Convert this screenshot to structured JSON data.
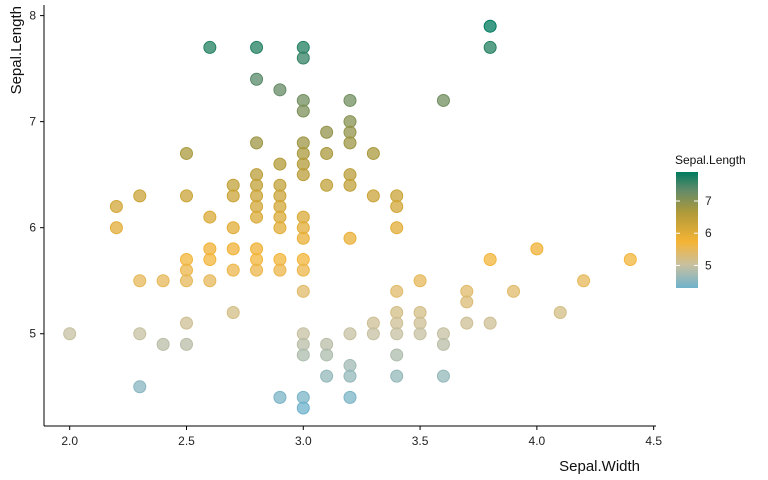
{
  "chart_data": {
    "type": "scatter",
    "xlabel": "Sepal.Width",
    "ylabel": "Sepal.Length",
    "xlim": [
      1.89,
      4.51
    ],
    "ylim": [
      4.13,
      8.1
    ],
    "x_ticks": [
      2.0,
      2.5,
      3.0,
      3.5,
      4.0,
      4.5
    ],
    "x_tick_labels": [
      "2.0",
      "2.5",
      "3.0",
      "3.5",
      "4.0",
      "4.5"
    ],
    "y_ticks": [
      5,
      6,
      7,
      8
    ],
    "y_tick_labels": [
      "5",
      "6",
      "7",
      "8"
    ],
    "grid": false,
    "color_by": "Sepal.Length",
    "legend": {
      "title": "Sepal.Length",
      "placement": "right",
      "range": [
        4.3,
        7.9
      ],
      "ticks": [
        5,
        6,
        7
      ],
      "tick_labels": [
        "5",
        "6",
        "7"
      ],
      "colors": [
        "#6fb2cc",
        "#c8c0a0",
        "#f5b435",
        "#b09a3a",
        "#5f8a6a",
        "#007a5e"
      ]
    },
    "points": [
      {
        "x": 2.0,
        "y": 5.0
      },
      {
        "x": 2.2,
        "y": 6.2
      },
      {
        "x": 2.2,
        "y": 6.0
      },
      {
        "x": 2.3,
        "y": 6.3
      },
      {
        "x": 2.3,
        "y": 5.5
      },
      {
        "x": 2.3,
        "y": 5.0
      },
      {
        "x": 2.3,
        "y": 4.5
      },
      {
        "x": 2.4,
        "y": 5.5
      },
      {
        "x": 2.4,
        "y": 4.9
      },
      {
        "x": 2.5,
        "y": 6.7
      },
      {
        "x": 2.5,
        "y": 6.3
      },
      {
        "x": 2.5,
        "y": 5.7
      },
      {
        "x": 2.5,
        "y": 5.6
      },
      {
        "x": 2.5,
        "y": 5.5
      },
      {
        "x": 2.5,
        "y": 5.1
      },
      {
        "x": 2.5,
        "y": 4.9
      },
      {
        "x": 2.6,
        "y": 7.7
      },
      {
        "x": 2.6,
        "y": 6.1
      },
      {
        "x": 2.6,
        "y": 5.8
      },
      {
        "x": 2.6,
        "y": 5.7
      },
      {
        "x": 2.6,
        "y": 5.5
      },
      {
        "x": 2.7,
        "y": 6.4
      },
      {
        "x": 2.7,
        "y": 6.3
      },
      {
        "x": 2.7,
        "y": 6.0
      },
      {
        "x": 2.7,
        "y": 5.8
      },
      {
        "x": 2.7,
        "y": 5.6
      },
      {
        "x": 2.7,
        "y": 5.2
      },
      {
        "x": 2.8,
        "y": 7.7
      },
      {
        "x": 2.8,
        "y": 7.4
      },
      {
        "x": 2.8,
        "y": 6.8
      },
      {
        "x": 2.8,
        "y": 6.5
      },
      {
        "x": 2.8,
        "y": 6.4
      },
      {
        "x": 2.8,
        "y": 6.3
      },
      {
        "x": 2.8,
        "y": 6.2
      },
      {
        "x": 2.8,
        "y": 6.1
      },
      {
        "x": 2.8,
        "y": 5.8
      },
      {
        "x": 2.8,
        "y": 5.7
      },
      {
        "x": 2.8,
        "y": 5.6
      },
      {
        "x": 2.9,
        "y": 7.3
      },
      {
        "x": 2.9,
        "y": 6.6
      },
      {
        "x": 2.9,
        "y": 6.4
      },
      {
        "x": 2.9,
        "y": 6.3
      },
      {
        "x": 2.9,
        "y": 6.2
      },
      {
        "x": 2.9,
        "y": 6.1
      },
      {
        "x": 2.9,
        "y": 6.0
      },
      {
        "x": 2.9,
        "y": 5.7
      },
      {
        "x": 2.9,
        "y": 5.6
      },
      {
        "x": 2.9,
        "y": 4.4
      },
      {
        "x": 3.0,
        "y": 7.7
      },
      {
        "x": 3.0,
        "y": 7.6
      },
      {
        "x": 3.0,
        "y": 7.2
      },
      {
        "x": 3.0,
        "y": 7.1
      },
      {
        "x": 3.0,
        "y": 6.8
      },
      {
        "x": 3.0,
        "y": 6.7
      },
      {
        "x": 3.0,
        "y": 6.6
      },
      {
        "x": 3.0,
        "y": 6.5
      },
      {
        "x": 3.0,
        "y": 6.1
      },
      {
        "x": 3.0,
        "y": 6.0
      },
      {
        "x": 3.0,
        "y": 5.9
      },
      {
        "x": 3.0,
        "y": 5.7
      },
      {
        "x": 3.0,
        "y": 5.6
      },
      {
        "x": 3.0,
        "y": 5.4
      },
      {
        "x": 3.0,
        "y": 5.0
      },
      {
        "x": 3.0,
        "y": 4.9
      },
      {
        "x": 3.0,
        "y": 4.8
      },
      {
        "x": 3.0,
        "y": 4.4
      },
      {
        "x": 3.0,
        "y": 4.3
      },
      {
        "x": 3.1,
        "y": 6.9
      },
      {
        "x": 3.1,
        "y": 6.7
      },
      {
        "x": 3.1,
        "y": 6.4
      },
      {
        "x": 3.1,
        "y": 4.9
      },
      {
        "x": 3.1,
        "y": 4.8
      },
      {
        "x": 3.1,
        "y": 4.6
      },
      {
        "x": 3.2,
        "y": 7.2
      },
      {
        "x": 3.2,
        "y": 7.0
      },
      {
        "x": 3.2,
        "y": 6.9
      },
      {
        "x": 3.2,
        "y": 6.8
      },
      {
        "x": 3.2,
        "y": 6.5
      },
      {
        "x": 3.2,
        "y": 6.4
      },
      {
        "x": 3.2,
        "y": 5.9
      },
      {
        "x": 3.2,
        "y": 5.0
      },
      {
        "x": 3.2,
        "y": 4.7
      },
      {
        "x": 3.2,
        "y": 4.6
      },
      {
        "x": 3.2,
        "y": 4.4
      },
      {
        "x": 3.3,
        "y": 6.7
      },
      {
        "x": 3.3,
        "y": 6.3
      },
      {
        "x": 3.3,
        "y": 5.1
      },
      {
        "x": 3.3,
        "y": 5.0
      },
      {
        "x": 3.4,
        "y": 6.3
      },
      {
        "x": 3.4,
        "y": 6.2
      },
      {
        "x": 3.4,
        "y": 6.0
      },
      {
        "x": 3.4,
        "y": 5.4
      },
      {
        "x": 3.4,
        "y": 5.2
      },
      {
        "x": 3.4,
        "y": 5.1
      },
      {
        "x": 3.4,
        "y": 5.0
      },
      {
        "x": 3.4,
        "y": 4.8
      },
      {
        "x": 3.4,
        "y": 4.6
      },
      {
        "x": 3.5,
        "y": 5.5
      },
      {
        "x": 3.5,
        "y": 5.2
      },
      {
        "x": 3.5,
        "y": 5.1
      },
      {
        "x": 3.5,
        "y": 5.0
      },
      {
        "x": 3.6,
        "y": 7.2
      },
      {
        "x": 3.6,
        "y": 5.0
      },
      {
        "x": 3.6,
        "y": 4.9
      },
      {
        "x": 3.6,
        "y": 4.6
      },
      {
        "x": 3.7,
        "y": 5.4
      },
      {
        "x": 3.7,
        "y": 5.3
      },
      {
        "x": 3.7,
        "y": 5.1
      },
      {
        "x": 3.8,
        "y": 7.9
      },
      {
        "x": 3.8,
        "y": 7.7
      },
      {
        "x": 3.8,
        "y": 5.7
      },
      {
        "x": 3.8,
        "y": 5.1
      },
      {
        "x": 3.9,
        "y": 5.4
      },
      {
        "x": 4.0,
        "y": 5.8
      },
      {
        "x": 4.1,
        "y": 5.2
      },
      {
        "x": 4.2,
        "y": 5.5
      },
      {
        "x": 4.4,
        "y": 5.7
      }
    ]
  }
}
